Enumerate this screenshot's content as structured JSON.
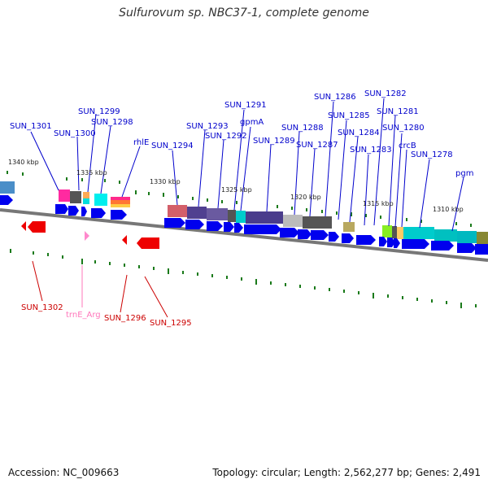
{
  "header": {
    "title": "Sulfurovum sp. NBC37-1, complete genome"
  },
  "footer": {
    "accession": "Accession: NC_009663",
    "summary": "Topology: circular; Length: 2,562,277 bp; Genes: 2,491"
  },
  "colors": {
    "forward_gene": "#0000ee",
    "reverse_gene": "#ee0000",
    "trna": "#ff88cc",
    "backbone": "#777777",
    "tick": "#1a7a1a",
    "label_blue": "#0000cc",
    "label_red": "#cc0000",
    "label_pink": "#ff77bb"
  },
  "scale_labels": [
    "1340 kbp",
    "1335 kbp",
    "1330 kbp",
    "1325 kbp",
    "1320 kbp",
    "1315 kbp",
    "1310 kbp"
  ],
  "labels_top": [
    "SUN_1301",
    "SUN_1300",
    "SUN_1299",
    "SUN_1298",
    "rhlE",
    "SUN_1294",
    "SUN_1293",
    "SUN_1292",
    "SUN_1291",
    "gpmA",
    "SUN_1289",
    "SUN_1288",
    "SUN_1287",
    "SUN_1286",
    "SUN_1285",
    "SUN_1284",
    "SUN_1283",
    "SUN_1282",
    "SUN_1281",
    "SUN_1280",
    "crcB",
    "SUN_1278",
    "pgm"
  ],
  "labels_bottom": [
    "SUN_1302",
    "trnE_Arg",
    "SUN_1296",
    "SUN_1295"
  ]
}
